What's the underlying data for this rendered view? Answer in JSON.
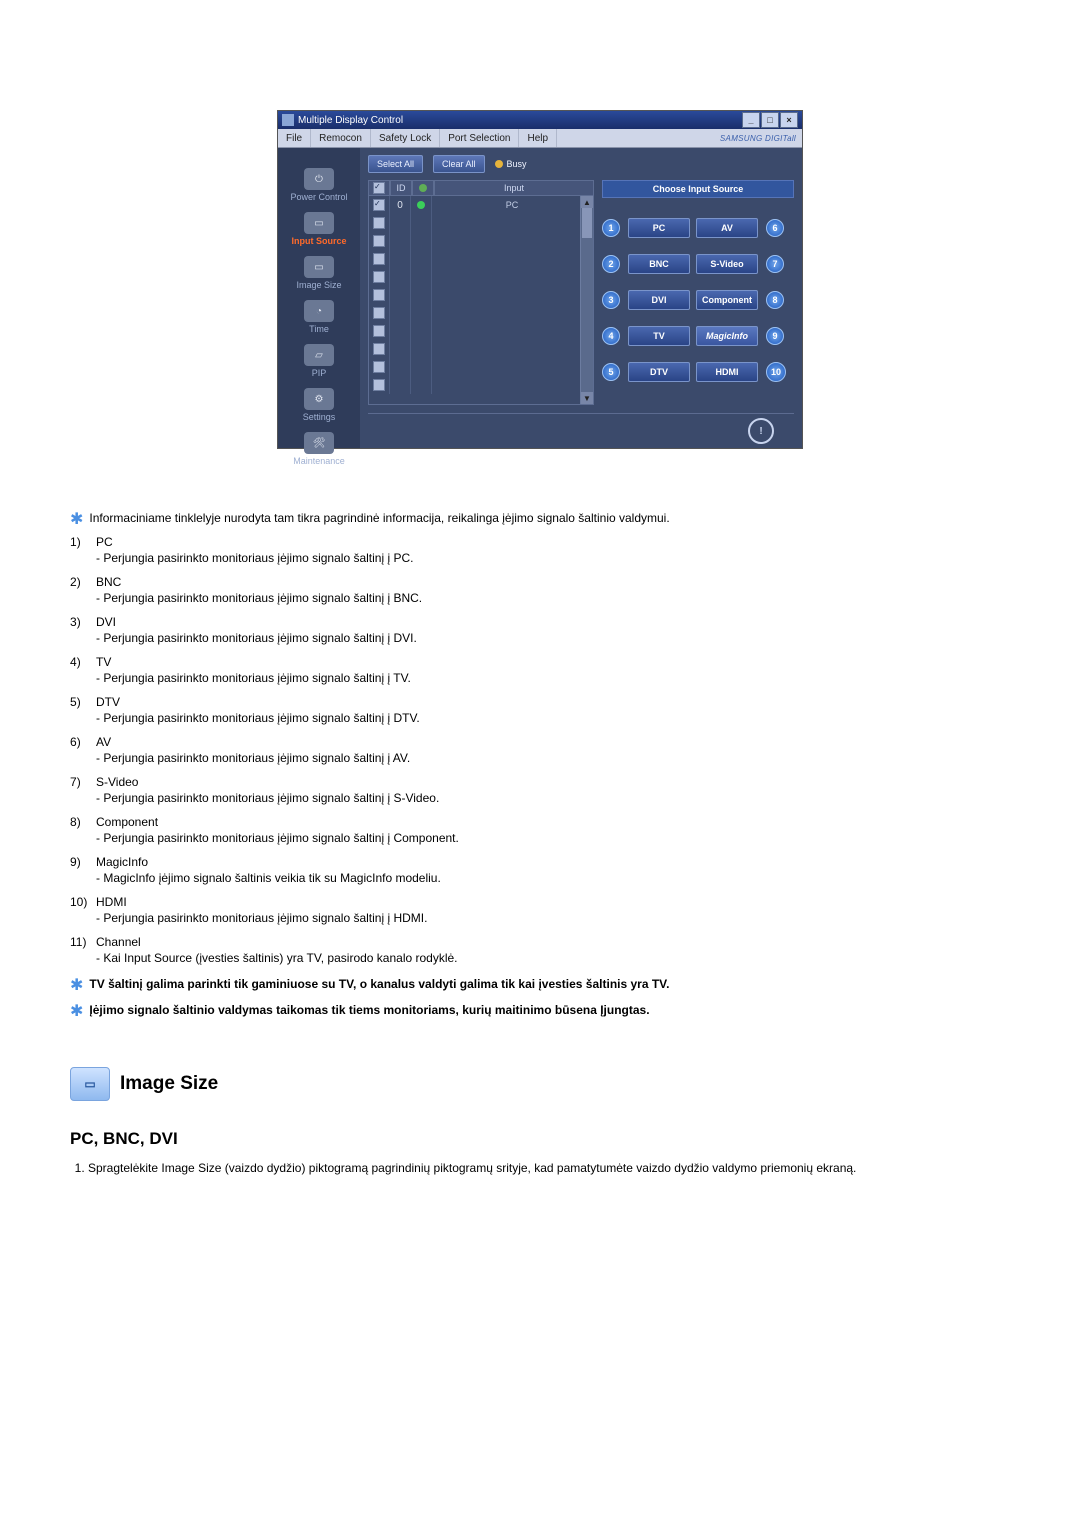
{
  "window": {
    "title": "Multiple Display Control",
    "menus": [
      "File",
      "Remocon",
      "Safety Lock",
      "Port Selection",
      "Help"
    ],
    "brand": "SAMSUNG DIGITall",
    "win_buttons": {
      "min": "_",
      "max": "□",
      "close": "×"
    }
  },
  "toolbar": {
    "select_all": "Select All",
    "clear_all": "Clear All",
    "busy": "Busy"
  },
  "sidebar": {
    "items": [
      {
        "label": "Power Control"
      },
      {
        "label": "Input Source"
      },
      {
        "label": "Image Size"
      },
      {
        "label": "Time"
      },
      {
        "label": "PIP"
      },
      {
        "label": "Settings"
      },
      {
        "label": "Maintenance"
      }
    ],
    "selected_index": 1
  },
  "grid": {
    "headers": {
      "c1": "✓",
      "c2": "ID",
      "c3": "●",
      "c4": "Input"
    },
    "first_row": {
      "checked": true,
      "id": "0",
      "input": "PC"
    },
    "blank_rows": 10
  },
  "panel": {
    "title": "Choose Input Source",
    "left": [
      {
        "n": "1",
        "label": "PC"
      },
      {
        "n": "2",
        "label": "BNC"
      },
      {
        "n": "3",
        "label": "DVI"
      },
      {
        "n": "4",
        "label": "TV"
      },
      {
        "n": "5",
        "label": "DTV"
      }
    ],
    "right": [
      {
        "n": "6",
        "label": "AV"
      },
      {
        "n": "7",
        "label": "S-Video"
      },
      {
        "n": "8",
        "label": "Component"
      },
      {
        "n": "9",
        "label": "MagicInfo",
        "magic": true
      },
      {
        "n": "10",
        "label": "HDMI"
      }
    ]
  },
  "status_icon": "!",
  "intro_text": "Informaciniame tinklelyje nurodyta tam tikra pagrindinė informacija, reikalinga įėjimo signalo šaltinio valdymui.",
  "list": [
    {
      "title": "PC",
      "desc": "- Perjungia pasirinkto monitoriaus įėjimo signalo šaltinį į PC."
    },
    {
      "title": "BNC",
      "desc": "- Perjungia pasirinkto monitoriaus įėjimo signalo šaltinį į BNC."
    },
    {
      "title": "DVI",
      "desc": "- Perjungia pasirinkto monitoriaus įėjimo signalo šaltinį į DVI."
    },
    {
      "title": "TV",
      "desc": "- Perjungia pasirinkto monitoriaus įėjimo signalo šaltinį į TV."
    },
    {
      "title": "DTV",
      "desc": "- Perjungia pasirinkto monitoriaus įėjimo signalo šaltinį į DTV."
    },
    {
      "title": "AV",
      "desc": "- Perjungia pasirinkto monitoriaus įėjimo signalo šaltinį į AV."
    },
    {
      "title": "S-Video",
      "desc": "- Perjungia pasirinkto monitoriaus įėjimo signalo šaltinį į S-Video."
    },
    {
      "title": "Component",
      "desc": "- Perjungia pasirinkto monitoriaus įėjimo signalo šaltinį į Component."
    },
    {
      "title": "MagicInfo",
      "desc": "- MagicInfo įėjimo signalo šaltinis veikia tik su MagicInfo modeliu."
    },
    {
      "title": "HDMI",
      "desc": "- Perjungia pasirinkto monitoriaus įėjimo signalo šaltinį į HDMI."
    },
    {
      "title": "Channel",
      "desc": "- Kai Input Source (įvesties šaltinis) yra TV, pasirodo kanalo rodyklė."
    }
  ],
  "notes": [
    "TV šaltinį galima parinkti tik gaminiuose su TV, o kanalus valdyti galima tik kai įvesties šaltinis yra TV.",
    "Įėjimo signalo šaltinio valdymas taikomas tik tiems monitoriams, kurių maitinimo būsena Įjungtas."
  ],
  "section": {
    "title": "Image Size",
    "subheading": "PC, BNC, DVI",
    "step1": "Spragtelėkite Image Size (vaizdo dydžio) piktogramą pagrindinių piktogramų srityje, kad pamatytumėte vaizdo dydžio valdymo priemonių ekraną."
  },
  "colors": {
    "window_bg": "#3b4a6b",
    "accent_button": "#3a548f",
    "callout_circle": "#1e5abf",
    "star": "#4a8fe2"
  }
}
